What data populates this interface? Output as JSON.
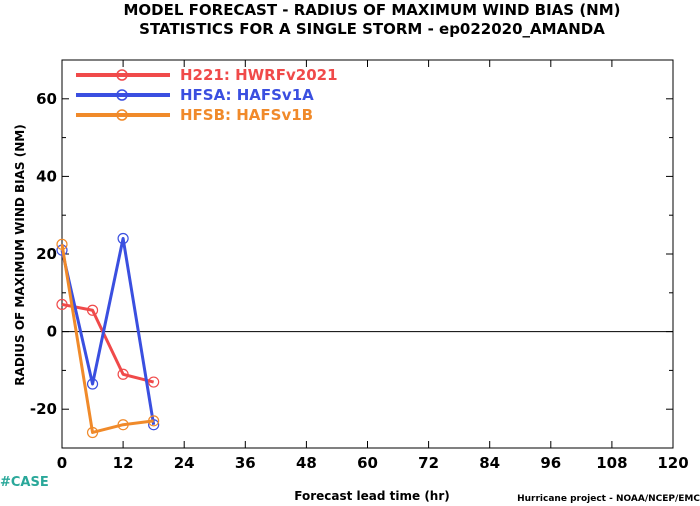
{
  "header": {
    "title_line1": "MODEL FORECAST - RADIUS OF MAXIMUM WIND BIAS (NM)",
    "title_line2": "STATISTICS FOR A SINGLE STORM - ep022020_AMANDA"
  },
  "footer": {
    "credit": "Hurricane project - NOAA/NCEP/EMC",
    "tag": "#CASE"
  },
  "chart_data": {
    "type": "line",
    "title": "MODEL FORECAST - RADIUS OF MAXIMUM WIND BIAS (NM)",
    "subtitle": "STATISTICS FOR A SINGLE STORM - ep022020_AMANDA",
    "xlabel": "Forecast lead time (hr)",
    "ylabel": "RADIUS OF MAXIMUM WIND BIAS (NM)",
    "xlim": [
      0,
      120
    ],
    "ylim": [
      -30,
      70
    ],
    "xticks": [
      0,
      12,
      24,
      36,
      48,
      60,
      72,
      84,
      96,
      108,
      120
    ],
    "yticks": [
      -20,
      0,
      20,
      40,
      60
    ],
    "zero_line": true,
    "grid": false,
    "legend_position": "top-left",
    "series": [
      {
        "name": "H221: HWRFv2021",
        "color": "#f04a4a",
        "x": [
          0,
          6,
          12,
          18
        ],
        "y": [
          7,
          5.5,
          -11,
          -13
        ]
      },
      {
        "name": "HFSA: HAFSv1A",
        "color": "#3a4fe0",
        "x": [
          0,
          6,
          12,
          18
        ],
        "y": [
          21,
          -13.5,
          24,
          -24
        ]
      },
      {
        "name": "HFSB: HAFSv1B",
        "color": "#f08a2a",
        "x": [
          0,
          6,
          12,
          18
        ],
        "y": [
          22.5,
          -26,
          -24,
          -23
        ]
      }
    ]
  }
}
